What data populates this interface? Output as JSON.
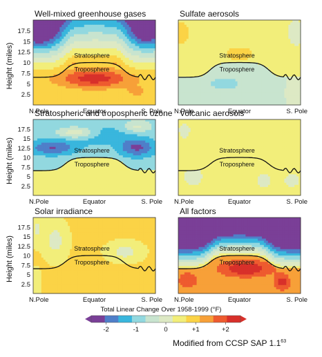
{
  "chart_data": [
    {
      "type": "heatmap",
      "title": "Well-mixed greenhouse gases",
      "ylabel": "Height (miles)",
      "y_ticks": [
        "2.5",
        "5",
        "7.5",
        "10",
        "12.5",
        "15",
        "17.5"
      ],
      "x_ticks": [
        "N.Pole",
        "Equator",
        "S. Pole"
      ],
      "region_labels": [
        "Stratosphere",
        "Troposphere"
      ],
      "pattern": "greenhouse"
    },
    {
      "type": "heatmap",
      "title": "Sulfate aerosols",
      "ylabel": "",
      "y_ticks": [],
      "x_ticks": [
        "N.Pole",
        "Equator",
        "S. Pole"
      ],
      "region_labels": [
        "Stratosphere",
        "Troposphere"
      ],
      "pattern": "sulfate"
    },
    {
      "type": "heatmap",
      "title": "Stratospheric and tropospheric ozone",
      "ylabel": "Height (miles)",
      "y_ticks": [
        "2.5",
        "5",
        "7.5",
        "10",
        "12.5",
        "15",
        "17.5"
      ],
      "x_ticks": [
        "N.Pole",
        "Equator",
        "S. Pole"
      ],
      "region_labels": [
        "Stratosphere",
        "Troposphere"
      ],
      "pattern": "ozone"
    },
    {
      "type": "heatmap",
      "title": "Volcanic aerosols",
      "ylabel": "",
      "y_ticks": [],
      "x_ticks": [
        "N.Pole",
        "Equator",
        "S. Pole"
      ],
      "region_labels": [
        "Stratosphere",
        "Troposphere"
      ],
      "pattern": "volcanic"
    },
    {
      "type": "heatmap",
      "title": "Solar irradiance",
      "ylabel": "Height (miles)",
      "y_ticks": [
        "2.5",
        "5",
        "7.5",
        "10",
        "12.5",
        "15",
        "17.5"
      ],
      "x_ticks": [
        "N.Pole",
        "Equator",
        "S. Pole"
      ],
      "region_labels": [
        "Stratosphere",
        "Troposphere"
      ],
      "pattern": "solar"
    },
    {
      "type": "heatmap",
      "title": "All factors",
      "ylabel": "",
      "y_ticks": [],
      "x_ticks": [
        "N.Pole",
        "Equator",
        "S. Pole"
      ],
      "region_labels": [
        "Stratosphere",
        "Troposphere"
      ],
      "pattern": "all"
    }
  ],
  "colorbar": {
    "title": "Total Linear Change Over 1958-1999 (°F)",
    "tick_labels": [
      "-2",
      "-1",
      "0",
      "+1",
      "+2"
    ],
    "range": [
      -2.5,
      2.5
    ],
    "colors": [
      "#7a3f97",
      "#4f7fc9",
      "#39b6dd",
      "#92d8df",
      "#c8e4cf",
      "#dde9c4",
      "#f2ee7a",
      "#fbd346",
      "#f7a038",
      "#ee5b2f",
      "#d8302a"
    ]
  },
  "tropopause_height_miles": {
    "polar": 6.5,
    "tropics": 10
  },
  "caption": {
    "text": "Modified from CCSP SAP 1.1",
    "ref": "63"
  }
}
